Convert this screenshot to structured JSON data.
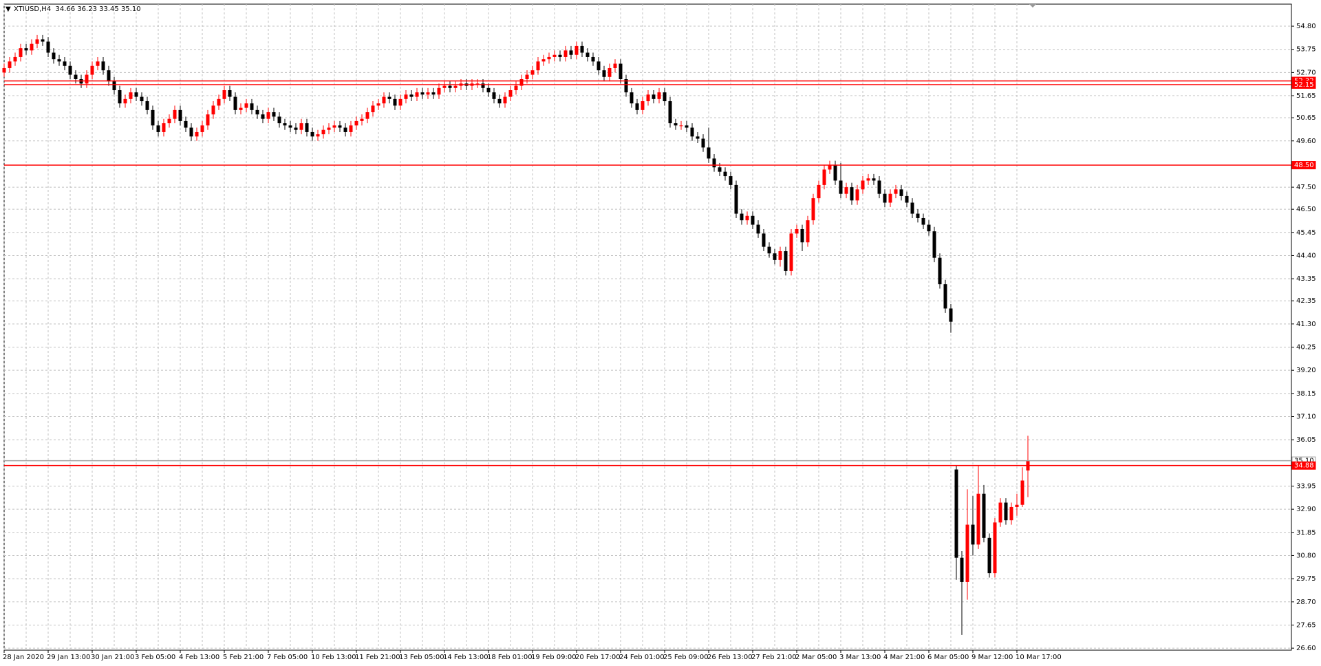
{
  "chart_data": {
    "type": "candlestick",
    "title": "XTIUSD,H4  34.66 36.23 33.45 35.10",
    "bull_color": "#ff0000",
    "bear_color": "#000000",
    "grid": true,
    "ylim": [
      26.51,
      55.8
    ],
    "yticks": [
      {
        "value": 54.8,
        "label": "54.80"
      },
      53.75,
      {
        "value": 52.7,
        "label": "52.70"
      },
      51.65,
      50.65,
      {
        "value": 49.6,
        "label": "49.60"
      },
      {
        "value": 47.5,
        "label": "47.50"
      },
      {
        "value": 46.5,
        "label": "46.50"
      },
      45.45,
      {
        "value": 44.4,
        "label": "44.40"
      },
      43.35,
      42.35,
      {
        "value": 41.3,
        "label": "41.30"
      },
      40.25,
      {
        "value": 39.2,
        "label": "39.20"
      },
      38.15,
      {
        "value": 37.1,
        "label": "37.10"
      },
      36.05,
      33.95,
      {
        "value": 32.9,
        "label": "32.90"
      },
      31.85,
      {
        "value": 30.8,
        "label": "30.80"
      },
      29.75,
      {
        "value": 28.7,
        "label": "28.70"
      },
      27.65,
      {
        "value": 26.6,
        "label": "26.60"
      }
    ],
    "levels": [
      {
        "value": 52.32,
        "label": "52.32",
        "color": "#ff0000"
      },
      {
        "value": 52.15,
        "label": "52.15",
        "color": "#ff0000"
      },
      {
        "value": 48.5,
        "label": "48.50",
        "color": "#ff0000"
      },
      {
        "value": 35.1,
        "label": "35.10",
        "color": "#a0a0a0"
      },
      {
        "value": 34.88,
        "label": "34.88",
        "color": "#ff0000"
      }
    ],
    "categories": [
      "28 Jan 2020",
      null,
      null,
      null,
      null,
      null,
      null,
      null,
      "29 Jan 13:00",
      null,
      null,
      null,
      null,
      null,
      null,
      null,
      "30 Jan 21:00",
      null,
      null,
      null,
      null,
      null,
      null,
      null,
      "3 Feb 05:00",
      null,
      null,
      null,
      null,
      null,
      null,
      null,
      "4 Feb 13:00",
      null,
      null,
      null,
      null,
      null,
      null,
      null,
      "5 Feb 21:00",
      null,
      null,
      null,
      null,
      null,
      null,
      null,
      "7 Feb 05:00",
      null,
      null,
      null,
      null,
      null,
      null,
      null,
      "10 Feb 13:00",
      null,
      null,
      null,
      null,
      null,
      null,
      null,
      "11 Feb 21:00",
      null,
      null,
      null,
      null,
      null,
      null,
      null,
      "13 Feb 05:00",
      null,
      null,
      null,
      null,
      null,
      null,
      null,
      "14 Feb 13:00",
      null,
      null,
      null,
      null,
      null,
      null,
      null,
      "18 Feb 01:00",
      null,
      null,
      null,
      null,
      null,
      null,
      null,
      "19 Feb 09:00",
      null,
      null,
      null,
      null,
      null,
      null,
      null,
      "20 Feb 17:00",
      null,
      null,
      null,
      null,
      null,
      null,
      null,
      "24 Feb 01:00",
      null,
      null,
      null,
      null,
      null,
      null,
      null,
      "25 Feb 09:00",
      null,
      null,
      null,
      null,
      null,
      null,
      null,
      "26 Feb 13:00",
      null,
      null,
      null,
      null,
      null,
      null,
      null,
      "27 Feb 21:00",
      null,
      null,
      null,
      null,
      null,
      null,
      null,
      "2 Mar 05:00",
      null,
      null,
      null,
      null,
      null,
      null,
      null,
      "3 Mar 13:00",
      null,
      null,
      null,
      null,
      null,
      null,
      null,
      "4 Mar 21:00",
      null,
      null,
      null,
      null,
      null,
      null,
      null,
      "6 Mar 05:00",
      null,
      null,
      null,
      null,
      null,
      null,
      null,
      "9 Mar 12:00",
      null,
      null,
      null,
      null,
      null,
      null,
      null,
      "10 Mar 17:00",
      null,
      null
    ],
    "open": [
      52.7,
      52.9,
      53.2,
      53.4,
      53.8,
      53.7,
      54.0,
      54.2,
      54.1,
      53.6,
      53.3,
      53.2,
      53.0,
      52.6,
      52.4,
      52.2,
      52.6,
      53.0,
      53.2,
      52.8,
      52.3,
      51.9,
      51.3,
      51.5,
      51.8,
      51.6,
      51.4,
      51.0,
      50.3,
      50.0,
      50.4,
      50.6,
      51.0,
      50.5,
      50.2,
      49.8,
      50.0,
      50.3,
      50.8,
      51.2,
      51.5,
      51.9,
      51.6,
      51.0,
      51.1,
      51.3,
      51.0,
      50.8,
      50.6,
      50.9,
      50.7,
      50.4,
      50.3,
      50.2,
      50.1,
      50.4,
      50.0,
      49.8,
      49.9,
      50.1,
      50.2,
      50.3,
      50.2,
      50.0,
      50.3,
      50.5,
      50.6,
      50.9,
      51.2,
      51.3,
      51.6,
      51.5,
      51.2,
      51.5,
      51.7,
      51.6,
      51.8,
      51.7,
      51.8,
      51.7,
      52.0,
      52.1,
      52.0,
      52.1,
      52.2,
      52.1,
      52.2,
      52.2,
      52.0,
      51.8,
      51.5,
      51.3,
      51.6,
      51.9,
      52.1,
      52.4,
      52.6,
      52.8,
      53.2,
      53.3,
      53.4,
      53.5,
      53.4,
      53.7,
      53.5,
      53.9,
      53.6,
      53.4,
      53.2,
      52.8,
      52.5,
      52.9,
      53.1,
      52.4,
      51.8,
      51.3,
      51.0,
      51.4,
      51.7,
      51.5,
      51.8,
      51.4,
      50.4,
      50.3,
      50.3,
      50.2,
      49.8,
      49.7,
      49.3,
      48.8,
      48.4,
      48.2,
      48.0,
      47.6,
      46.3,
      46.0,
      46.2,
      45.8,
      45.4,
      44.8,
      44.5,
      44.2,
      44.6,
      43.7,
      45.4,
      45.6,
      45.0,
      46.0,
      47.0,
      47.6,
      48.3,
      48.5,
      47.8,
      47.2,
      47.5,
      46.9,
      47.4,
      47.8,
      47.9,
      47.8,
      47.2,
      46.8,
      47.2,
      47.4,
      47.1,
      46.8,
      46.3,
      46.1,
      45.8,
      45.5,
      44.3,
      43.1,
      42.0,
      34.7,
      30.7,
      29.6,
      32.2,
      31.3,
      33.6,
      31.6,
      30.0,
      32.3,
      33.2,
      32.4,
      33.0,
      33.1,
      34.66
    ],
    "high": [
      53.1,
      53.4,
      53.6,
      54.0,
      54.0,
      54.2,
      54.4,
      54.4,
      54.3,
      53.8,
      53.5,
      53.4,
      53.2,
      52.8,
      52.6,
      52.8,
      53.2,
      53.4,
      53.4,
      53.0,
      52.5,
      52.1,
      51.7,
      52.0,
      52.0,
      51.8,
      51.6,
      51.2,
      50.5,
      50.6,
      50.8,
      51.2,
      51.2,
      50.7,
      50.4,
      50.2,
      50.5,
      51.0,
      51.4,
      51.7,
      52.1,
      52.1,
      51.8,
      51.3,
      51.5,
      51.5,
      51.2,
      51.0,
      51.1,
      51.1,
      50.9,
      50.6,
      50.5,
      50.4,
      50.6,
      50.6,
      50.2,
      50.1,
      50.3,
      50.4,
      50.5,
      50.5,
      50.4,
      50.5,
      50.7,
      50.8,
      51.1,
      51.4,
      51.5,
      51.8,
      51.8,
      51.7,
      51.7,
      51.9,
      51.9,
      52.0,
      52.0,
      52.0,
      52.0,
      52.2,
      52.3,
      52.3,
      52.3,
      52.4,
      52.4,
      52.4,
      52.4,
      52.4,
      52.2,
      52.0,
      51.7,
      51.8,
      52.1,
      52.3,
      52.6,
      52.8,
      53.0,
      53.4,
      53.5,
      53.6,
      53.7,
      53.7,
      53.9,
      53.9,
      54.1,
      54.1,
      53.8,
      53.6,
      53.4,
      53.0,
      53.1,
      53.3,
      53.3,
      52.6,
      52.0,
      51.5,
      51.6,
      51.9,
      51.9,
      52.0,
      52.0,
      51.6,
      50.6,
      50.5,
      50.5,
      50.4,
      50.0,
      49.9,
      50.2,
      49.0,
      48.6,
      48.4,
      48.2,
      47.8,
      46.5,
      46.4,
      46.4,
      46.0,
      45.6,
      45.0,
      44.7,
      44.8,
      44.8,
      45.6,
      45.8,
      45.8,
      46.2,
      47.2,
      47.8,
      48.5,
      48.7,
      48.7,
      48.6,
      47.7,
      47.7,
      47.6,
      48.0,
      48.1,
      48.1,
      48.0,
      47.4,
      47.4,
      47.6,
      47.6,
      47.3,
      47.0,
      46.5,
      46.3,
      46.0,
      45.7,
      44.5,
      43.3,
      42.2,
      34.9,
      31.0,
      33.8,
      33.5,
      34.9,
      34.0,
      31.8,
      32.5,
      33.4,
      33.4,
      33.2,
      33.6,
      34.8,
      36.23
    ],
    "low": [
      52.5,
      52.7,
      53.0,
      53.2,
      53.5,
      53.5,
      53.8,
      53.9,
      53.4,
      53.1,
      53.0,
      52.8,
      52.4,
      52.2,
      52.0,
      52.0,
      52.4,
      52.8,
      52.6,
      52.1,
      51.7,
      51.1,
      51.1,
      51.3,
      51.4,
      51.2,
      50.8,
      50.1,
      49.8,
      49.8,
      50.2,
      50.4,
      50.3,
      50.0,
      49.6,
      49.6,
      49.8,
      50.1,
      50.6,
      51.0,
      51.3,
      51.4,
      50.8,
      50.8,
      50.9,
      50.8,
      50.6,
      50.4,
      50.4,
      50.5,
      50.2,
      50.1,
      50.0,
      49.9,
      49.9,
      49.8,
      49.6,
      49.6,
      49.7,
      49.9,
      50.0,
      50.0,
      49.8,
      49.8,
      50.1,
      50.3,
      50.4,
      50.7,
      51.0,
      51.1,
      51.3,
      51.0,
      51.0,
      51.3,
      51.4,
      51.4,
      51.5,
      51.5,
      51.5,
      51.5,
      51.8,
      51.8,
      51.8,
      51.9,
      51.9,
      51.9,
      52.0,
      51.8,
      51.6,
      51.3,
      51.1,
      51.1,
      51.4,
      51.7,
      51.9,
      52.2,
      52.4,
      52.6,
      53.0,
      53.1,
      53.2,
      53.2,
      53.2,
      53.3,
      53.3,
      53.4,
      53.2,
      53.0,
      52.6,
      52.3,
      52.3,
      52.7,
      52.2,
      51.6,
      51.1,
      50.8,
      50.8,
      51.2,
      51.3,
      51.3,
      51.2,
      50.2,
      50.1,
      50.1,
      50.0,
      49.6,
      49.5,
      49.1,
      48.6,
      48.2,
      48.0,
      47.8,
      47.4,
      46.1,
      45.8,
      45.8,
      45.6,
      45.2,
      44.6,
      44.3,
      44.0,
      43.9,
      43.5,
      43.5,
      45.2,
      44.6,
      44.8,
      45.8,
      46.8,
      47.4,
      48.1,
      47.6,
      47.0,
      47.0,
      46.7,
      46.7,
      47.2,
      47.6,
      47.6,
      47.0,
      46.6,
      46.6,
      47.0,
      46.9,
      46.6,
      46.1,
      45.9,
      45.6,
      45.3,
      44.1,
      42.9,
      41.8,
      40.9,
      29.7,
      27.2,
      28.8,
      30.8,
      31.1,
      31.4,
      29.8,
      29.8,
      32.1,
      32.2,
      32.2,
      32.6,
      33.0,
      33.45
    ],
    "close": [
      52.9,
      53.2,
      53.4,
      53.8,
      53.7,
      54.0,
      54.2,
      54.1,
      53.6,
      53.3,
      53.2,
      53.0,
      52.6,
      52.4,
      52.2,
      52.6,
      53.0,
      53.2,
      52.8,
      52.3,
      51.9,
      51.3,
      51.5,
      51.8,
      51.6,
      51.4,
      51.0,
      50.3,
      50.0,
      50.4,
      50.6,
      51.0,
      50.5,
      50.2,
      49.8,
      50.0,
      50.3,
      50.8,
      51.2,
      51.5,
      51.9,
      51.6,
      51.0,
      51.1,
      51.3,
      51.0,
      50.8,
      50.6,
      50.9,
      50.7,
      50.4,
      50.3,
      50.2,
      50.1,
      50.4,
      50.0,
      49.8,
      49.9,
      50.1,
      50.2,
      50.3,
      50.2,
      50.0,
      50.3,
      50.5,
      50.6,
      50.9,
      51.2,
      51.3,
      51.6,
      51.5,
      51.2,
      51.5,
      51.7,
      51.6,
      51.8,
      51.7,
      51.8,
      51.7,
      52.0,
      52.1,
      52.0,
      52.1,
      52.2,
      52.1,
      52.2,
      52.2,
      52.0,
      51.8,
      51.5,
      51.3,
      51.6,
      51.9,
      52.1,
      52.4,
      52.6,
      52.8,
      53.2,
      53.3,
      53.4,
      53.5,
      53.4,
      53.7,
      53.5,
      53.9,
      53.6,
      53.4,
      53.2,
      52.8,
      52.5,
      52.9,
      53.1,
      52.4,
      51.8,
      51.3,
      51.0,
      51.4,
      51.7,
      51.5,
      51.8,
      51.4,
      50.4,
      50.3,
      50.3,
      50.2,
      49.8,
      49.7,
      49.3,
      48.8,
      48.4,
      48.2,
      48.0,
      47.6,
      46.3,
      46.0,
      46.2,
      45.8,
      45.4,
      44.8,
      44.5,
      44.2,
      44.6,
      43.7,
      45.4,
      45.6,
      45.0,
      46.0,
      47.0,
      47.6,
      48.3,
      48.5,
      47.8,
      47.2,
      47.5,
      46.9,
      47.4,
      47.8,
      47.9,
      47.8,
      47.2,
      46.8,
      47.2,
      47.4,
      47.1,
      46.8,
      46.3,
      46.1,
      45.8,
      45.5,
      44.3,
      43.1,
      42.0,
      41.4,
      30.7,
      29.6,
      32.2,
      31.3,
      33.6,
      31.6,
      30.0,
      32.3,
      33.2,
      32.4,
      33.0,
      33.1,
      34.2,
      35.1
    ]
  }
}
